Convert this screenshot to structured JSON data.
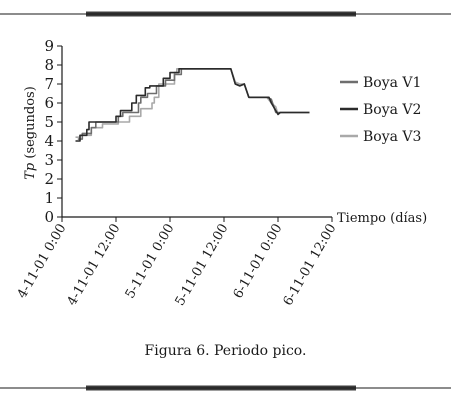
{
  "caption": "Figura 6. Periodo pico.",
  "chart_data": {
    "type": "line",
    "xlabel": "Tiempo (días)",
    "ylabel_italic": "Tp",
    "ylabel_rest": " (segundos)",
    "ylim": [
      0,
      9
    ],
    "yticks": [
      0,
      1,
      2,
      3,
      4,
      5,
      6,
      7,
      8,
      9
    ],
    "xlim": [
      0,
      60
    ],
    "xticks": [
      {
        "x": 0,
        "label": "4-11-01 0:00"
      },
      {
        "x": 12,
        "label": "4-11-01 12:00"
      },
      {
        "x": 24,
        "label": "5-11-01 0:00"
      },
      {
        "x": 36,
        "label": "5-11-01 12:00"
      },
      {
        "x": 48,
        "label": "6-11-01 0:00"
      },
      {
        "x": 60,
        "label": "6-11-01 12:00"
      }
    ],
    "legend_position": "right",
    "series": [
      {
        "name": "Boya V1",
        "color": "#6e6e6e",
        "points": [
          [
            3.5,
            4.1
          ],
          [
            4.5,
            4.1
          ],
          [
            4.5,
            4.4
          ],
          [
            6.5,
            4.4
          ],
          [
            6.5,
            4.7
          ],
          [
            7.5,
            4.7
          ],
          [
            7.5,
            5.0
          ],
          [
            12.5,
            5.0
          ],
          [
            12.5,
            5.3
          ],
          [
            13.5,
            5.3
          ],
          [
            13.5,
            5.5
          ],
          [
            17,
            5.5
          ],
          [
            17,
            6.0
          ],
          [
            17.5,
            6.0
          ],
          [
            17.5,
            6.3
          ],
          [
            19,
            6.3
          ],
          [
            19,
            6.5
          ],
          [
            21,
            6.5
          ],
          [
            21,
            6.9
          ],
          [
            23,
            6.9
          ],
          [
            23,
            7.2
          ],
          [
            25,
            7.2
          ],
          [
            25,
            7.5
          ],
          [
            26.5,
            7.5
          ],
          [
            26.5,
            7.8
          ],
          [
            37.5,
            7.8
          ],
          [
            38.5,
            7.0
          ],
          [
            39.5,
            6.9
          ],
          [
            40.5,
            7.0
          ],
          [
            41.5,
            6.3
          ],
          [
            45.5,
            6.3
          ],
          [
            46.5,
            6.2
          ],
          [
            47.5,
            5.5
          ],
          [
            48.5,
            5.5
          ],
          [
            55,
            5.5
          ]
        ]
      },
      {
        "name": "Boya V2",
        "color": "#2b2b2b",
        "points": [
          [
            3,
            4.0
          ],
          [
            4,
            4.0
          ],
          [
            4,
            4.3
          ],
          [
            5.5,
            4.3
          ],
          [
            5.5,
            4.6
          ],
          [
            6,
            4.6
          ],
          [
            6,
            5.0
          ],
          [
            12,
            5.0
          ],
          [
            12,
            5.3
          ],
          [
            13,
            5.3
          ],
          [
            13,
            5.6
          ],
          [
            15.5,
            5.6
          ],
          [
            15.5,
            6.0
          ],
          [
            16.5,
            6.0
          ],
          [
            16.5,
            6.4
          ],
          [
            18.5,
            6.4
          ],
          [
            18.5,
            6.8
          ],
          [
            19.5,
            6.8
          ],
          [
            19.5,
            6.9
          ],
          [
            22.5,
            6.9
          ],
          [
            22.5,
            7.3
          ],
          [
            24,
            7.3
          ],
          [
            24,
            7.6
          ],
          [
            26,
            7.6
          ],
          [
            26,
            7.8
          ],
          [
            37.5,
            7.8
          ],
          [
            38.5,
            7.0
          ],
          [
            39.5,
            6.9
          ],
          [
            40.5,
            7.0
          ],
          [
            41.5,
            6.3
          ],
          [
            46,
            6.3
          ],
          [
            46.5,
            6.0
          ],
          [
            47.5,
            5.6
          ],
          [
            48,
            5.4
          ],
          [
            48.5,
            5.5
          ],
          [
            55,
            5.5
          ]
        ]
      },
      {
        "name": "Boya V3",
        "color": "#a9a9a9",
        "points": [
          [
            3,
            4.2
          ],
          [
            4,
            4.2
          ],
          [
            4,
            4.3
          ],
          [
            6.5,
            4.3
          ],
          [
            6.5,
            4.7
          ],
          [
            9,
            4.7
          ],
          [
            9,
            4.9
          ],
          [
            12.5,
            4.9
          ],
          [
            12.5,
            5.0
          ],
          [
            15,
            5.0
          ],
          [
            15,
            5.3
          ],
          [
            17.5,
            5.3
          ],
          [
            17.5,
            5.7
          ],
          [
            20,
            5.7
          ],
          [
            20,
            6.0
          ],
          [
            20.5,
            6.0
          ],
          [
            20.5,
            6.3
          ],
          [
            21.5,
            6.3
          ],
          [
            21.5,
            7.0
          ],
          [
            25,
            7.0
          ],
          [
            25,
            7.6
          ],
          [
            25.5,
            7.6
          ],
          [
            25.5,
            7.8
          ],
          [
            37.5,
            7.8
          ],
          [
            38.5,
            7.1
          ],
          [
            39.5,
            7.0
          ],
          [
            40.5,
            7.0
          ],
          [
            41.5,
            6.3
          ],
          [
            45.5,
            6.3
          ],
          [
            46.5,
            6.0
          ],
          [
            47.5,
            5.8
          ],
          [
            48,
            5.4
          ],
          [
            48.5,
            5.5
          ],
          [
            55,
            5.5
          ]
        ]
      }
    ]
  }
}
